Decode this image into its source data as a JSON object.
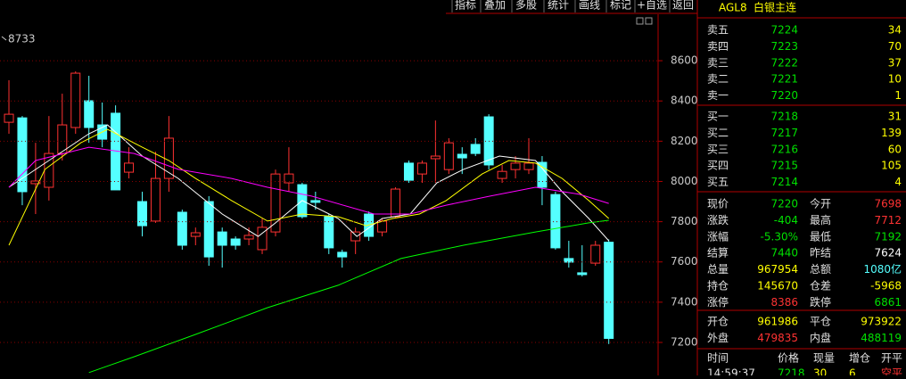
{
  "toolbar": [
    "指标",
    "叠加",
    "多股",
    "统计",
    "画线",
    "标记",
    "+自选",
    "返回"
  ],
  "chart_data": {
    "type": "candlestick",
    "annotation": "8733",
    "x": [
      0,
      1,
      2,
      3,
      4,
      5,
      6,
      7,
      8,
      9,
      10,
      11,
      12,
      13,
      14,
      15,
      16,
      17,
      18,
      19,
      20,
      21,
      22,
      23,
      24,
      25,
      26,
      27,
      28,
      29,
      30,
      31,
      32,
      33,
      34,
      35,
      36,
      37,
      38,
      39,
      40,
      41,
      42,
      43,
      44,
      45
    ],
    "open": [
      8294,
      8316,
      7989,
      7971,
      8139,
      8268,
      8401,
      8281,
      8339,
      8046,
      7900,
      7803,
      8015,
      7847,
      7727,
      7900,
      7749,
      7714,
      7714,
      7661,
      7749,
      7993,
      7984,
      7905,
      7825,
      7648,
      7705,
      7838,
      7749,
      7825,
      8091,
      8037,
      8113,
      8059,
      8135,
      8184,
      8321,
      8015,
      8059,
      8059,
      8095,
      7935,
      7617,
      7546,
      7594,
      7698
    ],
    "high": [
      8503,
      8325,
      8192,
      8325,
      8436,
      8547,
      8525,
      8392,
      8378,
      8170,
      7949,
      8148,
      8325,
      7860,
      7771,
      7927,
      7771,
      7727,
      7771,
      7816,
      8059,
      8170,
      7993,
      7949,
      7838,
      7661,
      7771,
      7851,
      7816,
      7971,
      8104,
      8104,
      8303,
      8215,
      8170,
      8215,
      8334,
      8082,
      8126,
      8215,
      8126,
      7949,
      7705,
      7683,
      7705,
      7712
    ],
    "low": [
      8237,
      7882,
      7838,
      7905,
      8104,
      8237,
      8192,
      8170,
      7958,
      8015,
      7727,
      7794,
      7949,
      7661,
      7683,
      7581,
      7572,
      7661,
      7683,
      7639,
      7727,
      7949,
      7816,
      7860,
      7639,
      7572,
      7639,
      7705,
      7727,
      7816,
      7993,
      7993,
      7993,
      8037,
      8037,
      8126,
      8059,
      7993,
      8015,
      8037,
      7882,
      7661,
      7572,
      7528,
      7581,
      7192
    ],
    "close": [
      8334,
      7949,
      8002,
      8139,
      8281,
      8538,
      8268,
      8210,
      7958,
      8091,
      7780,
      8015,
      8215,
      7683,
      7745,
      7625,
      7683,
      7683,
      7732,
      7772,
      8037,
      8037,
      7825,
      7896,
      7670,
      7625,
      7749,
      7727,
      7803,
      7962,
      8006,
      8091,
      8126,
      8192,
      8117,
      8139,
      8082,
      8050,
      8091,
      8091,
      7971,
      7670,
      7599,
      7537,
      7683,
      7220
    ],
    "up_color": "#ff3232",
    "down_color": "#54ffff",
    "series": [
      {
        "color": "#ffffff",
        "x": [
          0,
          6,
          7.4,
          10,
          12.7,
          16,
          18.7,
          20,
          22,
          24.7,
          26.1,
          28,
          30.1,
          32.1,
          34.1,
          36.8,
          39.5,
          41.5,
          43.5,
          45
        ],
        "values": [
          7971,
          8237,
          8281,
          8126,
          8015,
          7838,
          7727,
          7794,
          7905,
          7816,
          7727,
          7816,
          7838,
          7993,
          8060,
          8126,
          8104,
          7949,
          7816,
          7705
        ]
      },
      {
        "color": "#ffff00",
        "x": [
          0,
          2.7,
          5.4,
          7.4,
          10,
          12,
          14,
          16.7,
          19.4,
          22,
          24.7,
          26.8,
          28.8,
          30.8,
          32.8,
          35.5,
          37.5,
          39.5,
          41.5,
          43.5,
          45
        ],
        "values": [
          7683,
          8060,
          8192,
          8259,
          8170,
          8104,
          8015,
          7905,
          7803,
          7838,
          7825,
          7780,
          7816,
          7838,
          7905,
          8037,
          8104,
          8091,
          8015,
          7905,
          7816
        ]
      },
      {
        "color": "#ff00ff",
        "x": [
          0,
          2,
          6,
          9.4,
          12.7,
          16.7,
          19.4,
          22.7,
          27.4,
          30.1,
          32.8,
          36.1,
          39.5,
          42.8,
          45
        ],
        "values": [
          7971,
          8104,
          8170,
          8139,
          8060,
          8015,
          7971,
          7927,
          7838,
          7838,
          7882,
          7927,
          7971,
          7936,
          7891
        ]
      },
      {
        "color": "#00ff00",
        "x": [
          6,
          9.4,
          14,
          19.4,
          24.7,
          29.4,
          34.1,
          39.5,
          43.5,
          45
        ],
        "values": [
          7050,
          7129,
          7240,
          7373,
          7484,
          7617,
          7683,
          7749,
          7794,
          7807
        ]
      }
    ],
    "xlim": [
      -0.67,
      48.7
    ],
    "ylim": [
      7036,
      8813
    ],
    "yticks": [
      7200,
      7400,
      7600,
      7800,
      8000,
      8200,
      8400,
      8600
    ],
    "grid": true
  },
  "quote": {
    "symbol": "AGL8",
    "name": "白银主连",
    "sell": [
      {
        "label": "卖五",
        "price": 7224,
        "volume": 34
      },
      {
        "label": "卖四",
        "price": 7223,
        "volume": 70
      },
      {
        "label": "卖三",
        "price": 7222,
        "volume": 37
      },
      {
        "label": "卖二",
        "price": 7221,
        "volume": 10
      },
      {
        "label": "卖一",
        "price": 7220,
        "volume": 1
      }
    ],
    "buy": [
      {
        "label": "买一",
        "price": 7218,
        "volume": 31
      },
      {
        "label": "买二",
        "price": 7217,
        "volume": 139
      },
      {
        "label": "买三",
        "price": 7216,
        "volume": 60
      },
      {
        "label": "买四",
        "price": 7215,
        "volume": 105
      },
      {
        "label": "买五",
        "price": 7214,
        "volume": 4
      }
    ],
    "stats": [
      [
        {
          "label": "现价",
          "value": 7220,
          "color": "#00e000"
        },
        {
          "label": "今开",
          "value": 7698,
          "color": "#ff3232"
        }
      ],
      [
        {
          "label": "涨跌",
          "value": -404,
          "color": "#00e000"
        },
        {
          "label": "最高",
          "value": 7712,
          "color": "#ff3232"
        }
      ],
      [
        {
          "label": "涨幅",
          "value": "-5.30%",
          "color": "#00e000"
        },
        {
          "label": "最低",
          "value": 7192,
          "color": "#00e000"
        }
      ],
      [
        {
          "label": "结算",
          "value": 7440,
          "color": "#00e000"
        },
        {
          "label": "昨结",
          "value": 7624,
          "color": "#ffffff"
        }
      ],
      [
        {
          "label": "总量",
          "value": 967954,
          "color": "#ffff00"
        },
        {
          "label": "总额",
          "value": "1080亿",
          "color": "#54ffff"
        }
      ],
      [
        {
          "label": "持仓",
          "value": 145670,
          "color": "#ffff00"
        },
        {
          "label": "仓差",
          "value": -5968,
          "color": "#ffff00"
        }
      ],
      [
        {
          "label": "涨停",
          "value": 8386,
          "color": "#ff3232"
        },
        {
          "label": "跌停",
          "value": 6861,
          "color": "#00e000"
        }
      ]
    ],
    "volume_stats": [
      [
        {
          "label": "开仓",
          "value": 961986,
          "color": "#ffff00"
        },
        {
          "label": "平仓",
          "value": 973922,
          "color": "#ffff00"
        }
      ],
      [
        {
          "label": "外盘",
          "value": 479835,
          "color": "#ff3232"
        },
        {
          "label": "内盘",
          "value": 488119,
          "color": "#00e000"
        }
      ]
    ],
    "trades": {
      "columns": [
        "时间",
        "价格",
        "现量",
        "增仓",
        "开平"
      ],
      "rows": [
        [
          "14:59:37",
          7218,
          30,
          6,
          "空平"
        ]
      ]
    }
  }
}
